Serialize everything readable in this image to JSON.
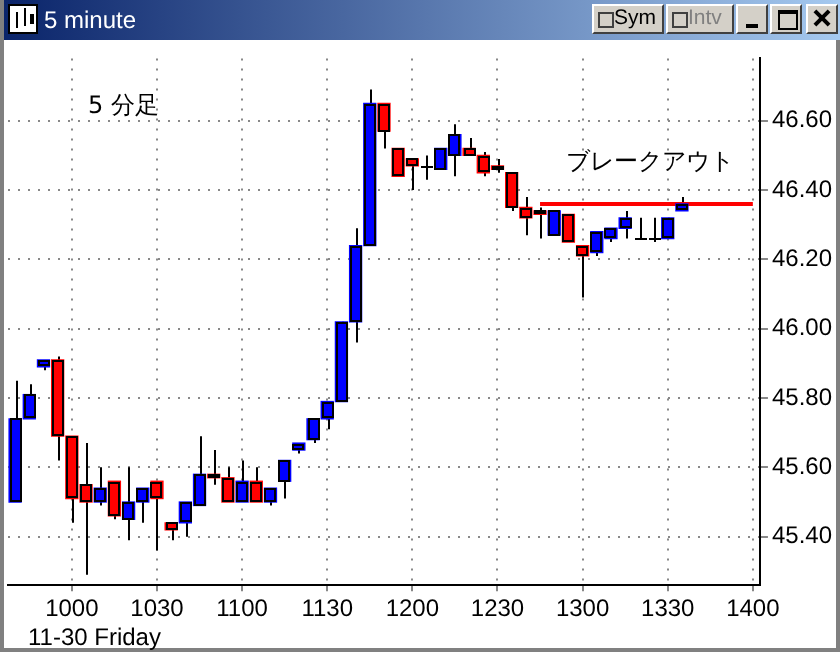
{
  "chart_data": {
    "type": "candlestick",
    "title": "5 minute",
    "categories": [
      null,
      null,
      null,
      null,
      "1000",
      null,
      null,
      null,
      null,
      null,
      "1030",
      null,
      null,
      null,
      null,
      null,
      "1100",
      null,
      null,
      null,
      null,
      null,
      "1130",
      null,
      null,
      null,
      null,
      null,
      "1200",
      null,
      null,
      null,
      null,
      null,
      "1230",
      null,
      null,
      null,
      null,
      null,
      "1300",
      null,
      null,
      null,
      null,
      null,
      "1330",
      null,
      null,
      null,
      null,
      null,
      "1400"
    ],
    "ohlc": [
      [
        45.5,
        45.85,
        45.5,
        45.74
      ],
      [
        45.74,
        45.84,
        45.74,
        45.81
      ],
      [
        45.89,
        45.91,
        45.88,
        45.91
      ],
      [
        45.91,
        45.92,
        45.62,
        45.69
      ],
      [
        45.69,
        45.69,
        45.44,
        45.51
      ],
      [
        45.55,
        45.67,
        45.29,
        45.5
      ],
      [
        45.5,
        45.6,
        45.49,
        45.54
      ],
      [
        45.56,
        45.56,
        45.45,
        45.46
      ],
      [
        45.45,
        45.6,
        45.39,
        45.5
      ],
      [
        45.5,
        45.54,
        45.44,
        45.54
      ],
      [
        45.56,
        45.56,
        45.36,
        45.51
      ],
      [
        45.44,
        45.44,
        45.39,
        45.42
      ],
      [
        45.44,
        45.5,
        45.4,
        45.5
      ],
      [
        45.49,
        45.69,
        45.49,
        45.58
      ],
      [
        45.58,
        45.65,
        45.55,
        45.57
      ],
      [
        45.57,
        45.6,
        45.5,
        45.5
      ],
      [
        45.5,
        45.62,
        45.5,
        45.56
      ],
      [
        45.56,
        45.6,
        45.5,
        45.5
      ],
      [
        45.5,
        45.54,
        45.49,
        45.54
      ],
      [
        45.56,
        45.62,
        45.51,
        45.62
      ],
      [
        45.65,
        45.67,
        45.64,
        45.67
      ],
      [
        45.68,
        45.74,
        45.67,
        45.74
      ],
      [
        45.74,
        45.79,
        45.71,
        45.79
      ],
      [
        45.79,
        46.02,
        45.79,
        46.02
      ],
      [
        46.02,
        46.29,
        45.96,
        46.24
      ],
      [
        46.24,
        46.69,
        46.24,
        46.65
      ],
      [
        46.65,
        46.65,
        46.52,
        46.57
      ],
      [
        46.52,
        46.52,
        46.44,
        46.44
      ],
      [
        46.49,
        46.49,
        46.4,
        46.47
      ],
      [
        46.47,
        46.5,
        46.43,
        46.47
      ],
      [
        46.46,
        46.52,
        46.46,
        46.52
      ],
      [
        46.5,
        46.59,
        46.44,
        46.56
      ],
      [
        46.52,
        46.55,
        46.5,
        46.5
      ],
      [
        46.5,
        46.51,
        46.44,
        46.45
      ],
      [
        46.47,
        46.49,
        46.45,
        46.46
      ],
      [
        46.45,
        46.45,
        46.34,
        46.35
      ],
      [
        46.35,
        46.38,
        46.27,
        46.32
      ],
      [
        46.34,
        46.35,
        46.26,
        46.33
      ],
      [
        46.27,
        46.34,
        46.27,
        46.34
      ],
      [
        46.33,
        46.33,
        46.25,
        46.25
      ],
      [
        46.24,
        46.24,
        46.09,
        46.21
      ],
      [
        46.22,
        46.28,
        46.21,
        46.28
      ],
      [
        46.26,
        46.29,
        46.25,
        46.29
      ],
      [
        46.29,
        46.34,
        46.26,
        46.32
      ],
      [
        46.26,
        46.32,
        46.26,
        46.26
      ],
      [
        46.26,
        46.32,
        46.25,
        46.26
      ],
      [
        46.26,
        46.32,
        46.26,
        46.32
      ],
      [
        46.34,
        46.38,
        46.34,
        46.36
      ],
      null,
      null,
      null,
      null,
      null
    ],
    "colors": [
      "#0000ff",
      "#0000ff",
      "#0000ff",
      "#ff0000",
      "#ff0000",
      "#ff0000",
      "#0000ff",
      "#ff0000",
      "#0000ff",
      "#0000ff",
      "#ff0000",
      "#ff0000",
      "#0000ff",
      "#0000ff",
      "#ff0000",
      "#ff0000",
      "#0000ff",
      "#ff0000",
      "#0000ff",
      "#0000ff",
      "#0000ff",
      "#0000ff",
      "#0000ff",
      "#0000ff",
      "#0000ff",
      "#0000ff",
      "#ff0000",
      "#ff0000",
      "#ff0000",
      "#000000",
      "#0000ff",
      "#0000ff",
      "#ff0000",
      "#ff0000",
      "#ff0000",
      "#ff0000",
      "#ff0000",
      "#ff0000",
      "#0000ff",
      "#ff0000",
      "#ff0000",
      "#0000ff",
      "#0000ff",
      "#0000ff",
      "#000000",
      "#000000",
      "#0000ff",
      "#0000ff",
      null,
      null,
      null,
      null,
      null
    ],
    "series": [
      {
        "type": "line",
        "color": "#ff0000",
        "values": [
          null,
          null,
          null,
          null,
          null,
          null,
          null,
          null,
          null,
          null,
          null,
          null,
          null,
          null,
          null,
          null,
          null,
          null,
          null,
          null,
          null,
          null,
          null,
          null,
          null,
          null,
          null,
          null,
          null,
          null,
          null,
          null,
          null,
          null,
          null,
          null,
          null,
          46.36,
          46.36,
          46.36,
          46.36,
          46.36,
          46.36,
          46.36,
          46.36,
          46.36,
          46.36,
          46.36,
          46.36,
          46.36,
          46.36,
          46.36,
          46.36
        ]
      }
    ],
    "ylim": [
      45.26,
      46.78
    ],
    "yticks": [
      {
        "value": 45.4,
        "label": "45.40"
      },
      {
        "value": 45.6,
        "label": "45.60"
      },
      {
        "value": 45.8,
        "label": "45.80"
      },
      {
        "value": 46.0,
        "label": "46.00"
      },
      {
        "value": 46.2,
        "label": "46.20"
      },
      {
        "value": 46.4,
        "label": "46.40"
      },
      {
        "value": 46.6,
        "label": "46.60"
      }
    ],
    "grid": true,
    "annotations": [
      "5 分足",
      "ブレークアウト",
      "11-30 Friday",
      "Sym",
      "Intv"
    ]
  }
}
